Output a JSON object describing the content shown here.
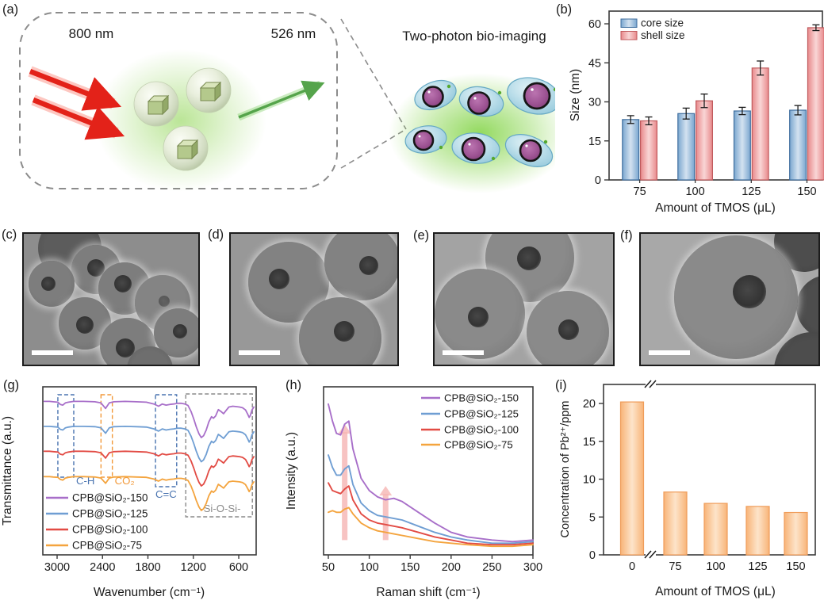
{
  "figure": {
    "panel_labels": {
      "a": "(a)",
      "b": "(b)",
      "c": "(c)",
      "d": "(d)",
      "e": "(e)",
      "f": "(f)",
      "g": "(g)",
      "h": "(h)",
      "i": "(i)"
    },
    "panel_a": {
      "excitation_label": "800 nm",
      "emission_label": "526 nm",
      "title": "Two-photon bio-imaging"
    }
  },
  "chart_data": [
    {
      "id": "b",
      "type": "bar",
      "title": "",
      "categories": [
        "75",
        "100",
        "125",
        "150"
      ],
      "xlabel": "Amount of TMOS (μL)",
      "ylabel": "Size (nm)",
      "ylim": [
        0,
        65
      ],
      "yticks": [
        0,
        15,
        30,
        45,
        60
      ],
      "legend_position": "top-left",
      "series": [
        {
          "name": "core size",
          "color_fill": [
            "#7aa6cf",
            "#d3e2f0"
          ],
          "color_edge": "#3f6e9e",
          "values": [
            23.2,
            25.5,
            26.5,
            26.8
          ],
          "errors": [
            1.5,
            2.1,
            1.4,
            1.8
          ]
        },
        {
          "name": "shell size",
          "color_fill": [
            "#e8898b",
            "#f9d6d6"
          ],
          "color_edge": "#c05a5d",
          "values": [
            22.7,
            30.4,
            43.0,
            58.5
          ],
          "errors": [
            1.5,
            2.6,
            2.7,
            1.1
          ]
        }
      ]
    },
    {
      "id": "g",
      "type": "line",
      "title": "",
      "xlabel": "Wavenumber (cm⁻¹)",
      "ylabel": "Transmittance (a.u.)",
      "x_reversed": true,
      "xlim": [
        3170,
        375
      ],
      "x_ticks": [
        3000,
        2400,
        1800,
        1200,
        600
      ],
      "legend_position": "bottom-left",
      "series": [
        {
          "name": "CPB@SiO₂-150",
          "color": "#a86fc9"
        },
        {
          "name": "CPB@SiO₂-125",
          "color": "#6f9ed3"
        },
        {
          "name": "CPB@SiO₂-100",
          "color": "#e24b44"
        },
        {
          "name": "CPB@SiO₂-75",
          "color": "#f4a43e"
        }
      ],
      "profile_x": [
        3170,
        3100,
        3050,
        2990,
        2958,
        2925,
        2890,
        2850,
        2780,
        2650,
        2500,
        2420,
        2360,
        2310,
        2250,
        2100,
        1950,
        1820,
        1720,
        1660,
        1610,
        1560,
        1510,
        1460,
        1410,
        1360,
        1310,
        1270,
        1230,
        1195,
        1160,
        1125,
        1095,
        1065,
        1030,
        995,
        960,
        935,
        905,
        870,
        835,
        800,
        770,
        730,
        680,
        630,
        590,
        550,
        510,
        480,
        462,
        445,
        425,
        400
      ],
      "profile_depth": [
        0.03,
        0.03,
        0.04,
        0.05,
        0.11,
        0.13,
        0.07,
        0.05,
        0.03,
        0.03,
        0.04,
        0.07,
        0.22,
        0.07,
        0.04,
        0.03,
        0.04,
        0.05,
        0.1,
        0.16,
        0.1,
        0.13,
        0.11,
        0.1,
        0.08,
        0.08,
        0.1,
        0.14,
        0.3,
        0.5,
        0.72,
        0.9,
        1.0,
        0.95,
        0.8,
        0.58,
        0.44,
        0.48,
        0.42,
        0.25,
        0.3,
        0.36,
        0.28,
        0.18,
        0.16,
        0.17,
        0.18,
        0.2,
        0.26,
        0.38,
        0.46,
        0.4,
        0.26,
        0.18
      ],
      "annotations": [
        {
          "text": "C-H",
          "color": "#4a74b0",
          "band": [
            2990,
            2780
          ]
        },
        {
          "text": "CO₂",
          "color": "#f2993a",
          "band": [
            2420,
            2270
          ]
        },
        {
          "text": "C=C",
          "color": "#4a74b0",
          "band": [
            1700,
            1420
          ]
        },
        {
          "text": "-Si-O-Si-",
          "color": "#8a8a8a",
          "band": [
            1300,
            420
          ]
        }
      ]
    },
    {
      "id": "h",
      "type": "line",
      "title": "",
      "xlabel": "Raman shift (cm⁻¹)",
      "ylabel": "Intensity (a.u.)",
      "x_ticks": [
        50,
        100,
        150,
        200,
        250,
        300
      ],
      "x": [
        50,
        55,
        60,
        65,
        70,
        75,
        80,
        90,
        100,
        110,
        120,
        130,
        140,
        160,
        180,
        200,
        220,
        250,
        275,
        300
      ],
      "legend_position": "top-right",
      "arrow_color": "#f6b5b3",
      "arrows": [
        {
          "x": 70,
          "from": 0.07,
          "to": 0.82
        },
        {
          "x": 120,
          "from": 0.07,
          "to": 0.42
        }
      ],
      "series": [
        {
          "name": "CPB@SiO₂-150",
          "color": "#a86fc9",
          "values": [
            0.95,
            0.84,
            0.76,
            0.75,
            0.82,
            0.84,
            0.66,
            0.47,
            0.39,
            0.35,
            0.33,
            0.34,
            0.32,
            0.25,
            0.18,
            0.12,
            0.09,
            0.07,
            0.06,
            0.07
          ]
        },
        {
          "name": "CPB@SiO₂-125",
          "color": "#6f9ed3",
          "values": [
            0.62,
            0.54,
            0.49,
            0.49,
            0.53,
            0.55,
            0.43,
            0.31,
            0.26,
            0.23,
            0.22,
            0.21,
            0.2,
            0.16,
            0.12,
            0.09,
            0.07,
            0.05,
            0.05,
            0.06
          ]
        },
        {
          "name": "CPB@SiO₂-100",
          "color": "#e24b44",
          "values": [
            0.44,
            0.39,
            0.38,
            0.37,
            0.4,
            0.42,
            0.33,
            0.24,
            0.2,
            0.18,
            0.17,
            0.16,
            0.15,
            0.12,
            0.09,
            0.07,
            0.05,
            0.04,
            0.04,
            0.05
          ]
        },
        {
          "name": "CPB@SiO₂-75",
          "color": "#f4a43e",
          "values": [
            0.25,
            0.26,
            0.25,
            0.25,
            0.27,
            0.28,
            0.24,
            0.18,
            0.15,
            0.13,
            0.12,
            0.11,
            0.1,
            0.08,
            0.06,
            0.05,
            0.04,
            0.03,
            0.03,
            0.04
          ]
        }
      ]
    },
    {
      "id": "i",
      "type": "bar",
      "title": "",
      "categories": [
        "0",
        "75",
        "100",
        "125",
        "150"
      ],
      "values": [
        20.2,
        8.3,
        6.8,
        6.4,
        5.6
      ],
      "xlabel": "Amount of TMOS (μL)",
      "ylabel": "Concentration of Pb²⁺/ppm",
      "yticks": [
        0,
        5,
        10,
        15,
        20
      ],
      "ylim": [
        0,
        22.5
      ],
      "bar_color_fill": [
        "#f8b478",
        "#fde4ca"
      ],
      "bar_color_edge": "#ef9c59",
      "axis_break_between": [
        "0",
        "75"
      ]
    }
  ]
}
